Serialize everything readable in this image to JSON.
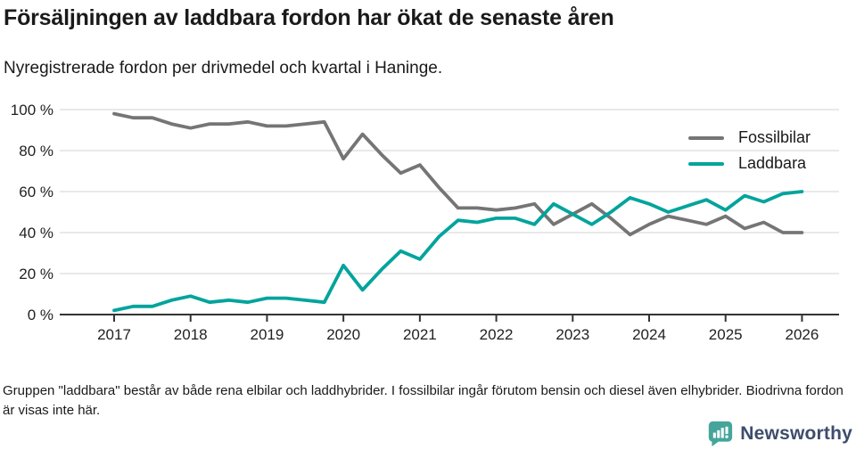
{
  "header": {
    "title": "Försäljningen av laddbara fordon har ökat de senaste åren",
    "subtitle": "Nyregistrerade fordon per drivmedel och kvartal i Haninge."
  },
  "chart_data": {
    "type": "line",
    "title": "Försäljningen av laddbara fordon har ökat de senaste åren",
    "xlabel": "",
    "ylabel": "",
    "ylim": [
      0,
      100
    ],
    "grid": "horizontal",
    "legend_position": "top-right",
    "x_frequency": "quarterly",
    "categories": [
      "2017Q1",
      "2017Q2",
      "2017Q3",
      "2017Q4",
      "2018Q1",
      "2018Q2",
      "2018Q3",
      "2018Q4",
      "2019Q1",
      "2019Q2",
      "2019Q3",
      "2019Q4",
      "2020Q1",
      "2020Q2",
      "2020Q3",
      "2020Q4",
      "2021Q1",
      "2021Q2",
      "2021Q3",
      "2021Q4",
      "2022Q1",
      "2022Q2",
      "2022Q3",
      "2022Q4",
      "2023Q1",
      "2023Q2",
      "2023Q3",
      "2023Q4",
      "2024Q1",
      "2024Q2",
      "2024Q3",
      "2024Q4",
      "2025Q1",
      "2025Q2",
      "2025Q3",
      "2025Q4",
      "2026Q1"
    ],
    "series": [
      {
        "name": "Fossilbilar",
        "color": "#757575",
        "values": [
          98,
          96,
          96,
          93,
          91,
          93,
          93,
          94,
          92,
          92,
          93,
          94,
          76,
          88,
          78,
          69,
          73,
          62,
          52,
          52,
          51,
          52,
          54,
          44,
          49,
          54,
          47,
          39,
          44,
          48,
          46,
          44,
          48,
          42,
          45,
          40,
          40
        ]
      },
      {
        "name": "Laddbara",
        "color": "#00a49c",
        "values": [
          2,
          4,
          4,
          7,
          9,
          6,
          7,
          6,
          8,
          8,
          7,
          6,
          24,
          12,
          22,
          31,
          27,
          38,
          46,
          45,
          47,
          47,
          44,
          54,
          49,
          44,
          50,
          57,
          54,
          50,
          53,
          56,
          51,
          58,
          55,
          59,
          60
        ]
      }
    ],
    "yticks": {
      "values": [
        100,
        80,
        60,
        40,
        20,
        0
      ],
      "labels": [
        "100 %",
        "80 %",
        "60 %",
        "40 %",
        "20 %",
        "0 %"
      ]
    },
    "xticks": {
      "labels": [
        "2017",
        "2018",
        "2019",
        "2020",
        "2021",
        "2022",
        "2023",
        "2024",
        "2025",
        "2026"
      ]
    }
  },
  "legend": {
    "items": [
      {
        "label": "Fossilbilar",
        "color": "#757575"
      },
      {
        "label": "Laddbara",
        "color": "#00a49c"
      }
    ]
  },
  "footer": {
    "note": "Gruppen \"laddbara\" består av både rena elbilar och laddhybrider. I fossilbilar ingår förutom bensin och diesel även elhybrider. Biodrivna fordon är visas inte här."
  },
  "branding": {
    "logo_text": "Newsworthy",
    "icon": "bar-chart-speech-bubble-icon",
    "icon_color": "#45a59b",
    "text_color": "#3d4d6b"
  }
}
